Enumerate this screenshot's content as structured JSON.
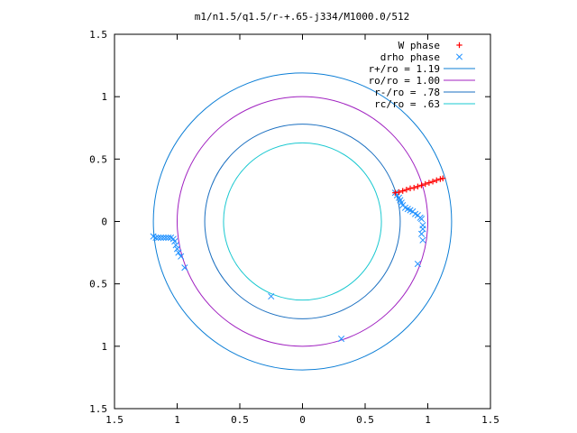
{
  "chart_data": {
    "type": "scatter",
    "title": "m1/n1.5/q1.5/r-+.65-j334/M1000.0/512",
    "xlim": [
      -1.5,
      1.5
    ],
    "ylim": [
      -1.5,
      1.5
    ],
    "x_ticks": [
      -1.5,
      -1,
      -0.5,
      0,
      0.5,
      1,
      1.5
    ],
    "x_tick_labels": [
      "1.5",
      "1",
      "0.5",
      "0",
      "0.5",
      "1",
      "1.5"
    ],
    "y_ticks": [
      1.5,
      1,
      0.5,
      0,
      -0.5,
      -1,
      -1.5
    ],
    "y_tick_labels": [
      "1.5",
      "1",
      "0.5",
      "0",
      "0.5",
      "1",
      "1.5"
    ],
    "grid": false,
    "legend_position": "top-right",
    "circles": [
      {
        "name": "r+/ro = 1.19",
        "radius": 1.19,
        "color": "#0c7ed6"
      },
      {
        "name": "ro/ro = 1.00",
        "radius": 1.0,
        "color": "#a020c0"
      },
      {
        "name": "r-/ro = .78",
        "radius": 0.78,
        "color": "#1a6fc0"
      },
      {
        "name": "rc/ro = .63",
        "radius": 0.63,
        "color": "#19c8d0"
      }
    ],
    "series": [
      {
        "name": "W phase",
        "marker": "plus",
        "color": "#ff0000",
        "points": [
          [
            0.74,
            0.23
          ],
          [
            0.77,
            0.235
          ],
          [
            0.8,
            0.245
          ],
          [
            0.83,
            0.255
          ],
          [
            0.86,
            0.265
          ],
          [
            0.89,
            0.27
          ],
          [
            0.92,
            0.28
          ],
          [
            0.95,
            0.29
          ],
          [
            0.98,
            0.3
          ],
          [
            1.01,
            0.31
          ],
          [
            1.04,
            0.32
          ],
          [
            1.07,
            0.33
          ],
          [
            1.1,
            0.34
          ],
          [
            1.12,
            0.345
          ]
        ]
      },
      {
        "name": "drho phase",
        "marker": "cross",
        "color": "#1e90ff",
        "points": [
          [
            0.74,
            0.23
          ],
          [
            0.755,
            0.21
          ],
          [
            0.77,
            0.19
          ],
          [
            0.78,
            0.17
          ],
          [
            0.79,
            0.15
          ],
          [
            0.8,
            0.13
          ],
          [
            0.82,
            0.11
          ],
          [
            0.84,
            0.1
          ],
          [
            0.86,
            0.09
          ],
          [
            0.88,
            0.08
          ],
          [
            0.9,
            0.06
          ],
          [
            0.92,
            0.05
          ],
          [
            0.94,
            0.03
          ],
          [
            0.95,
            0.02
          ],
          [
            0.96,
            -0.03
          ],
          [
            0.96,
            -0.06
          ],
          [
            0.95,
            -0.1
          ],
          [
            0.96,
            -0.15
          ],
          [
            0.92,
            -0.34
          ],
          [
            0.31,
            -0.94
          ],
          [
            -0.25,
            -0.6
          ],
          [
            -0.94,
            -0.37
          ],
          [
            -0.97,
            -0.28
          ],
          [
            -0.99,
            -0.25
          ],
          [
            -1.0,
            -0.22
          ],
          [
            -1.01,
            -0.19
          ],
          [
            -1.02,
            -0.16
          ],
          [
            -1.03,
            -0.14
          ],
          [
            -1.05,
            -0.13
          ],
          [
            -1.07,
            -0.13
          ],
          [
            -1.09,
            -0.13
          ],
          [
            -1.11,
            -0.13
          ],
          [
            -1.13,
            -0.13
          ],
          [
            -1.15,
            -0.13
          ],
          [
            -1.17,
            -0.13
          ],
          [
            -1.19,
            -0.12
          ]
        ]
      }
    ]
  }
}
